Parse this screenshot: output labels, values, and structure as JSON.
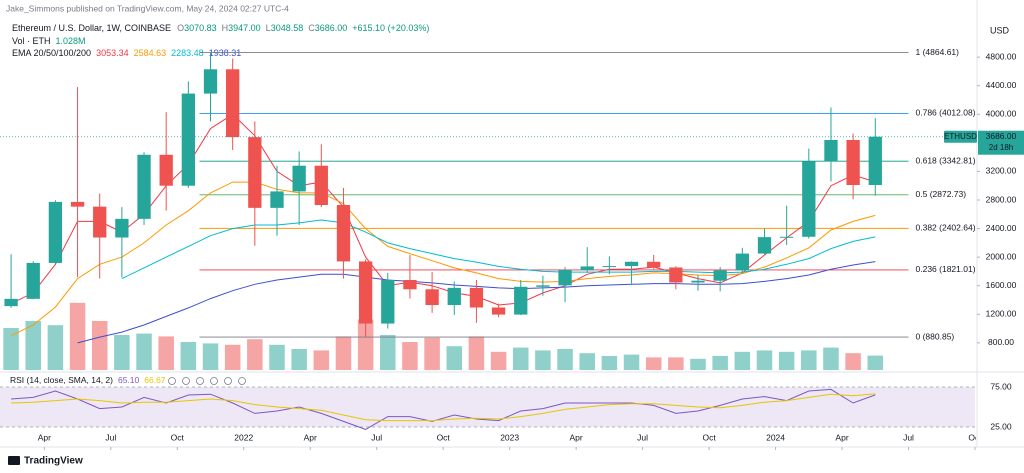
{
  "header": {
    "publisher": "Jake_Simmons published on TradingView.com, May 24, 2024 02:27 UTC-4",
    "symbol": "Ethereum / U.S. Dollar, 1W, COINBASE",
    "ohlc": [
      {
        "key": "O",
        "value": "3070.83"
      },
      {
        "key": "H",
        "value": "3947.00"
      },
      {
        "key": "L",
        "value": "3048.58"
      },
      {
        "key": "C",
        "value": "3686.00"
      }
    ],
    "change": "+615.10 (+20.03%)",
    "volume_label": "Vol · ETH",
    "volume_value": "1.028M",
    "ema_label": "EMA 20/50/100/200",
    "ema_values": [
      "3053.34",
      "2584.63",
      "2283.48",
      "1938.31"
    ],
    "currency": "USD",
    "tag_symbol": "ETHUSD",
    "tag_price": "3686.00",
    "tag_countdown": "2d 18h"
  },
  "footer": {
    "brand": "TradingView"
  },
  "chart_data": [
    {
      "type": "candlestick",
      "x": [
        "2021-02",
        "2021-03",
        "2021-04",
        "2021-05",
        "2021-06",
        "2021-07",
        "2021-08",
        "2021-09",
        "2021-10",
        "2021-11",
        "2021-12",
        "2022-01",
        "2022-02",
        "2022-03",
        "2022-04",
        "2022-05",
        "2022-06",
        "2022-07",
        "2022-08",
        "2022-09",
        "2022-10",
        "2022-11",
        "2022-12",
        "2023-01",
        "2023-02",
        "2023-03",
        "2023-04",
        "2023-05",
        "2023-06",
        "2023-07",
        "2023-08",
        "2023-09",
        "2023-10",
        "2023-11",
        "2023-12",
        "2024-01",
        "2024-02",
        "2024-03",
        "2024-04",
        "2024-05"
      ],
      "open": [
        1314,
        1416,
        1919,
        2773,
        2707,
        2275,
        2536,
        3433,
        3000,
        4290,
        4630,
        3680,
        2690,
        2920,
        3280,
        2730,
        1940,
        1070,
        1680,
        1550,
        1330,
        1570,
        1295,
        1196,
        1585,
        1605,
        1820,
        1870,
        1875,
        1935,
        1855,
        1645,
        1670,
        1815,
        2050,
        2280,
        2285,
        3340,
        3640,
        3010
      ],
      "high": [
        2041,
        1943,
        2797,
        4380,
        2890,
        2700,
        3470,
        4030,
        4460,
        4865,
        4780,
        3900,
        3280,
        3480,
        3580,
        2970,
        1970,
        1780,
        2030,
        1790,
        1660,
        1680,
        1350,
        1680,
        1740,
        1860,
        2140,
        2010,
        1940,
        2030,
        1875,
        1750,
        1860,
        2130,
        2400,
        2720,
        3520,
        4095,
        3730,
        3947
      ],
      "low": [
        1290,
        1410,
        1900,
        1720,
        1700,
        1718,
        2450,
        2650,
        2970,
        3900,
        3500,
        2160,
        2300,
        2450,
        2700,
        1700,
        881,
        1000,
        1420,
        1220,
        1190,
        1080,
        1160,
        1190,
        1460,
        1370,
        1780,
        1760,
        1630,
        1830,
        1550,
        1530,
        1520,
        1780,
        2040,
        2170,
        2260,
        3060,
        2810,
        2860
      ],
      "close": [
        1416,
        1919,
        2773,
        2707,
        2275,
        2536,
        3433,
        3000,
        4290,
        4630,
        3680,
        2690,
        2920,
        3280,
        2730,
        1940,
        1070,
        1680,
        1550,
        1330,
        1570,
        1295,
        1196,
        1585,
        1605,
        1820,
        1870,
        1875,
        1935,
        1855,
        1645,
        1670,
        1815,
        2050,
        2280,
        2285,
        3340,
        3640,
        3010,
        3686
      ],
      "up_color": "#26a69a",
      "down_color": "#ef5350",
      "volume": {
        "values": [
          3.0,
          3.5,
          3.2,
          4.8,
          3.5,
          2.5,
          2.6,
          2.4,
          2.0,
          1.9,
          1.8,
          2.2,
          1.8,
          1.5,
          1.4,
          2.4,
          3.6,
          2.5,
          2.0,
          2.3,
          1.7,
          2.4,
          1.3,
          1.6,
          1.4,
          1.5,
          1.2,
          1.0,
          1.1,
          0.9,
          0.9,
          0.8,
          1.0,
          1.3,
          1.4,
          1.3,
          1.4,
          1.6,
          1.2,
          1.028
        ],
        "up_color": "#8fd1ca",
        "down_color": "#f5a5a3"
      },
      "series": [
        {
          "color": "#f23645",
          "values": [
            1350,
            1500,
            1900,
            2500,
            2500,
            2350,
            2600,
            3000,
            3300,
            3800,
            4000,
            3700,
            3200,
            3000,
            3050,
            2700,
            2000,
            1600,
            1650,
            1600,
            1500,
            1450,
            1330,
            1360,
            1500,
            1600,
            1760,
            1830,
            1830,
            1860,
            1780,
            1700,
            1640,
            1780,
            2030,
            2270,
            2500,
            3000,
            3150,
            3053
          ]
        },
        {
          "color": "#ff9800",
          "values": [
            900,
            1050,
            1300,
            1700,
            1900,
            2000,
            2200,
            2450,
            2650,
            2900,
            3050,
            3050,
            2950,
            2900,
            2900,
            2750,
            2400,
            2150,
            2050,
            1950,
            1850,
            1780,
            1700,
            1660,
            1650,
            1660,
            1700,
            1730,
            1750,
            1780,
            1770,
            1750,
            1740,
            1770,
            1860,
            1990,
            2130,
            2380,
            2500,
            2585
          ]
        },
        {
          "color": "#00bcd4",
          "values": [
            null,
            null,
            null,
            null,
            null,
            1700,
            1850,
            2000,
            2150,
            2300,
            2400,
            2450,
            2450,
            2480,
            2520,
            2480,
            2350,
            2200,
            2120,
            2050,
            1980,
            1930,
            1870,
            1830,
            1800,
            1790,
            1790,
            1790,
            1790,
            1800,
            1800,
            1790,
            1780,
            1790,
            1830,
            1900,
            1980,
            2120,
            2220,
            2283
          ]
        },
        {
          "color": "#3d4fd1",
          "values": [
            null,
            null,
            null,
            800,
            880,
            950,
            1050,
            1170,
            1290,
            1420,
            1530,
            1620,
            1680,
            1720,
            1760,
            1760,
            1720,
            1680,
            1660,
            1640,
            1610,
            1590,
            1570,
            1560,
            1570,
            1580,
            1600,
            1610,
            1620,
            1630,
            1630,
            1620,
            1620,
            1630,
            1660,
            1700,
            1750,
            1830,
            1890,
            1938
          ]
        }
      ],
      "fib_levels": [
        {
          "value": 4864.61,
          "label": "1 (4864.61)",
          "color": "#787b86"
        },
        {
          "value": 4012.08,
          "label": "0.786 (4012.08)",
          "color": "#2196f3"
        },
        {
          "value": 3342.81,
          "label": "0.618 (3342.81)",
          "color": "#089981"
        },
        {
          "value": 2872.73,
          "label": "0.5 (2872.73)",
          "color": "#4caf50"
        },
        {
          "value": 2402.64,
          "label": "0.382 (2402.64)",
          "color": "#ff9800"
        },
        {
          "value": 1821.01,
          "label": "0.236 (1821.01)",
          "color": "#f23645"
        },
        {
          "value": 880.85,
          "label": "0 (880.85)",
          "color": "#787b86"
        }
      ],
      "fib_x": [
        "2021-11",
        "2024-07"
      ],
      "xlim": [
        "2021-02",
        "2024-10"
      ],
      "ylim": [
        420,
        5180
      ],
      "yticks": [
        {
          "value": 800,
          "label": "800.00"
        },
        {
          "value": 1200,
          "label": "1200.00"
        },
        {
          "value": 1600,
          "label": "1600.00"
        },
        {
          "value": 2000,
          "label": "2000.00"
        },
        {
          "value": 2400,
          "label": "2400.00"
        },
        {
          "value": 2800,
          "label": "2800.00"
        },
        {
          "value": 3200,
          "label": "3200.00"
        },
        {
          "value": 4000,
          "label": "4000.00"
        },
        {
          "value": 4400,
          "label": "4400.00"
        },
        {
          "value": 4800,
          "label": "4800.00"
        }
      ],
      "xticks": [
        {
          "value": "2021-04",
          "label": "Apr"
        },
        {
          "value": "2021-07",
          "label": "Jul"
        },
        {
          "value": "2021-10",
          "label": "Oct"
        },
        {
          "value": "2022-01",
          "label": "2022"
        },
        {
          "value": "2022-04",
          "label": "Apr"
        },
        {
          "value": "2022-07",
          "label": "Jul"
        },
        {
          "value": "2022-10",
          "label": "Oct"
        },
        {
          "value": "2023-01",
          "label": "2023"
        },
        {
          "value": "2023-04",
          "label": "Apr"
        },
        {
          "value": "2023-07",
          "label": "Jul"
        },
        {
          "value": "2023-10",
          "label": "Oct"
        },
        {
          "value": "2024-01",
          "label": "2024"
        },
        {
          "value": "2024-04",
          "label": "Apr"
        },
        {
          "value": "2024-07",
          "label": "Jul"
        },
        {
          "value": "2024-10",
          "label": "Oct"
        }
      ]
    },
    {
      "type": "line",
      "title": "RSI (14, close, SMA, 14, 2)",
      "series": [
        {
          "color": "#7e57c2",
          "last_label": "65.10",
          "values": [
            60,
            62,
            70,
            60,
            48,
            50,
            62,
            55,
            65,
            66,
            55,
            42,
            45,
            50,
            42,
            32,
            22,
            38,
            38,
            32,
            40,
            35,
            33,
            45,
            48,
            55,
            55,
            55,
            55,
            52,
            42,
            45,
            52,
            60,
            63,
            58,
            70,
            72,
            55,
            65.1
          ]
        },
        {
          "color": "#e6c700",
          "last_label": "66.67",
          "values": [
            55,
            56,
            58,
            60,
            58,
            55,
            56,
            56,
            58,
            60,
            58,
            53,
            50,
            48,
            46,
            40,
            34,
            33,
            33,
            33,
            35,
            36,
            35,
            38,
            42,
            47,
            50,
            53,
            54,
            54,
            52,
            50,
            49,
            52,
            56,
            58,
            62,
            66,
            64,
            66.67
          ]
        }
      ],
      "band_color": "#ede7f6",
      "ylim": [
        8.75,
        96.25
      ],
      "yticks": [
        {
          "value": 75,
          "label": "75.00"
        },
        {
          "value": 25,
          "label": "25.00"
        }
      ]
    }
  ]
}
